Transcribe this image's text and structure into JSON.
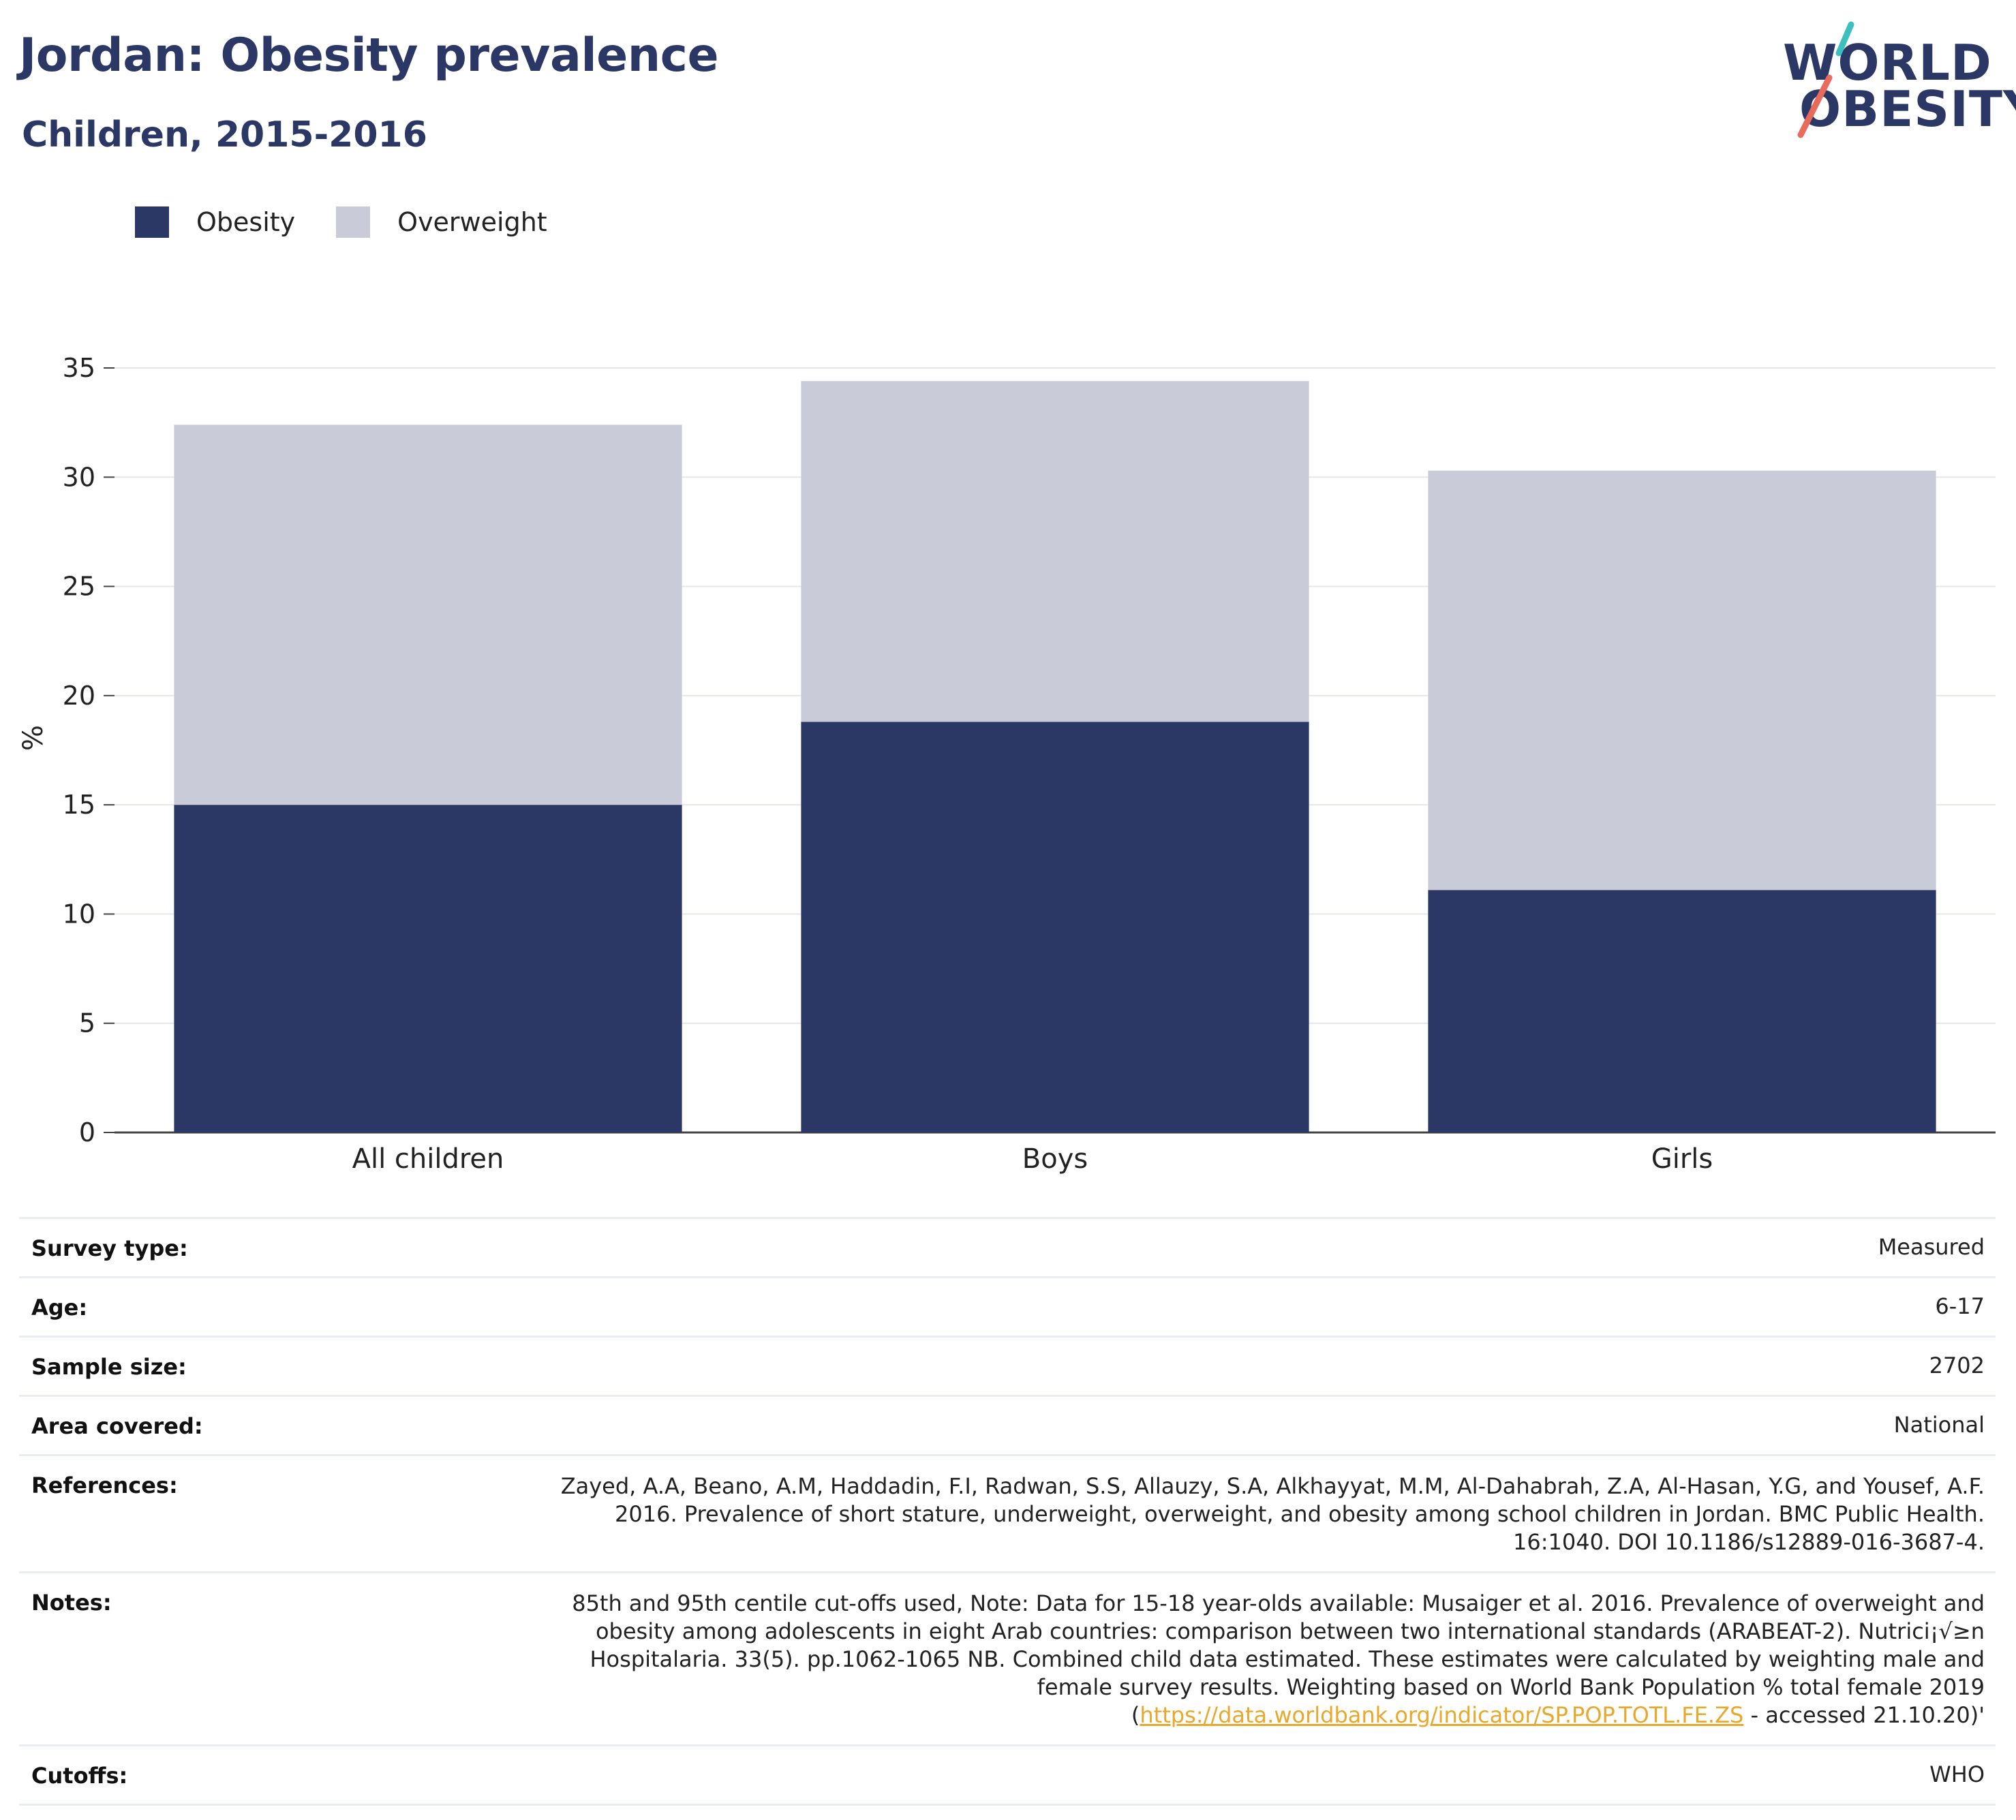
{
  "header": {
    "title": "Jordan: Obesity prevalence",
    "subtitle": "Children, 2015-2016"
  },
  "logo": {
    "line1": "WORLD",
    "line2": "OBESITY",
    "colors": {
      "text": "#2b3765",
      "slash_top": "#3bbfbf",
      "slash_bottom": "#e86a5a"
    }
  },
  "legend": [
    {
      "label": "Obesity",
      "color": "#2b3765"
    },
    {
      "label": "Overweight",
      "color": "#c9ccd8"
    }
  ],
  "chart_data": {
    "type": "bar",
    "stacked": true,
    "categories": [
      "All children",
      "Boys",
      "Girls"
    ],
    "series": [
      {
        "name": "Obesity",
        "color": "#2b3765",
        "values": [
          15.0,
          18.8,
          11.1
        ]
      },
      {
        "name": "Overweight",
        "color": "#c9ccd8",
        "values": [
          17.4,
          15.6,
          19.2
        ]
      }
    ],
    "ylabel": "%",
    "ylim": [
      0,
      35
    ],
    "yticks": [
      0,
      5,
      10,
      15,
      20,
      25,
      30,
      35
    ],
    "grid": true,
    "legend_position": "top-left"
  },
  "info_table": [
    {
      "label": "Survey type:",
      "value": "Measured"
    },
    {
      "label": "Age:",
      "value": "6-17"
    },
    {
      "label": "Sample size:",
      "value": "2702"
    },
    {
      "label": "Area covered:",
      "value": "National"
    },
    {
      "label": "References:",
      "value": "Zayed, A.A, Beano, A.M, Haddadin, F.I, Radwan, S.S, Allauzy, S.A, Alkhayyat, M.M, Al-Dahabrah, Z.A, Al-Hasan, Y.G, and Yousef, A.F. 2016. Prevalence of short stature, underweight, overweight, and obesity among school children in Jordan. BMC Public Health. 16:1040. DOI 10.1186/s12889-016-3687-4."
    },
    {
      "label": "Notes:",
      "value_pre": "85th and 95th centile cut-offs used, Note: Data for 15-18 year-olds available: Musaiger et al. 2016. Prevalence of overweight and obesity among adolescents in eight Arab countries: comparison between two international standards (ARABEAT-2). Nutrici¡√≥n Hospitalaria. 33(5). pp.1062-1065 NB. Combined child data estimated. These estimates were calculated by weighting male and female survey results. Weighting based on World Bank Population % total female 2019 (",
      "link": "https://data.worldbank.org/indicator/SP.POP.TOTL.FE.ZS",
      "value_post": " - accessed 21.10.20)'"
    },
    {
      "label": "Cutoffs:",
      "value": "WHO"
    }
  ]
}
